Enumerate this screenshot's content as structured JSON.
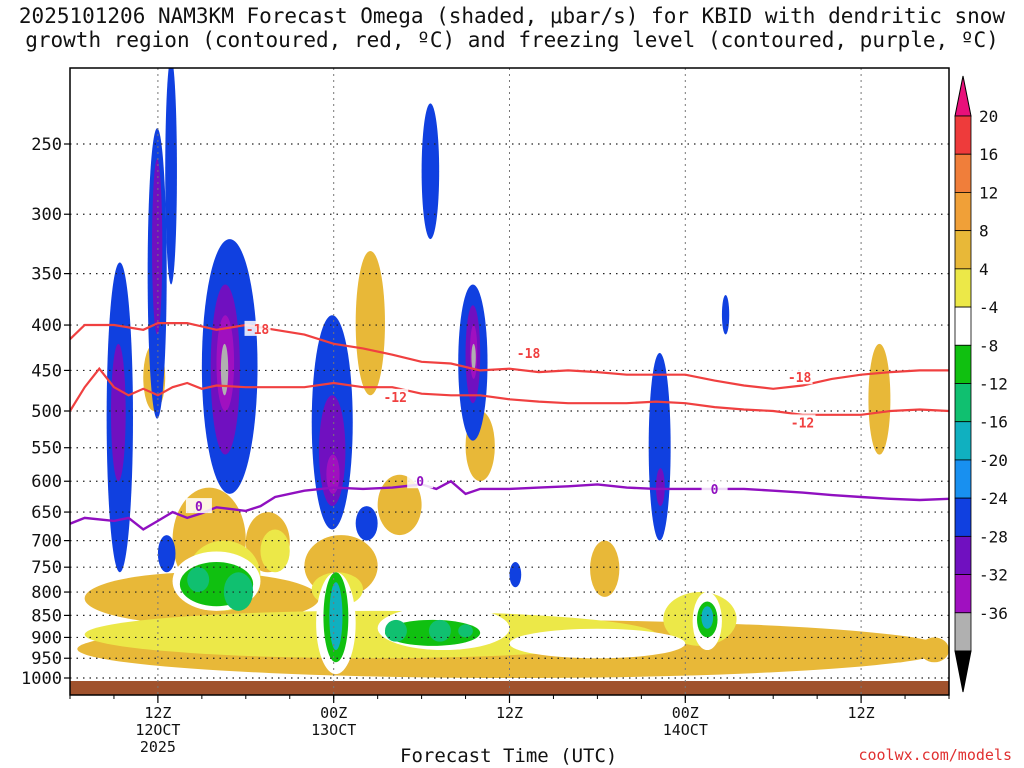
{
  "chart_data": {
    "type": "heatmap",
    "title_line1": "2025101206 NAM3KM Forecast Omega (shaded, μbar/s) for KBID with dendritic snow",
    "title_line2": "growth region (contoured, red, ºC) and freezing level (contoured, purple, ºC)",
    "xlabel": "Forecast Time (UTC)",
    "ylabel": "",
    "pressure_ticks": [
      250,
      300,
      350,
      400,
      450,
      500,
      550,
      600,
      650,
      700,
      750,
      800,
      850,
      900,
      950,
      1000
    ],
    "ylim": [
      1000,
      200
    ],
    "forecast_hours_range": [
      0,
      60
    ],
    "x_ticks": [
      {
        "hour": 6,
        "line1": "12Z",
        "line2": "12OCT",
        "line3": "2025"
      },
      {
        "hour": 18,
        "line1": "00Z",
        "line2": "13OCT",
        "line3": ""
      },
      {
        "hour": 30,
        "line1": "12Z",
        "line2": "",
        "line3": ""
      },
      {
        "hour": 42,
        "line1": "00Z",
        "line2": "14OCT",
        "line3": ""
      },
      {
        "hour": 54,
        "line1": "12Z",
        "line2": "",
        "line3": ""
      }
    ],
    "colorbar": {
      "labels": [
        "20",
        "16",
        "12",
        "8",
        "4",
        "-4",
        "-8",
        "-12",
        "-16",
        "-20",
        "-24",
        "-28",
        "-32",
        "-36"
      ],
      "colors": [
        "#e8107a",
        "#ee3b3b",
        "#f07e3a",
        "#f0a038",
        "#e8b838",
        "#ece848",
        "#ffffff",
        "#10c010",
        "#10c070",
        "#10b0c0",
        "#1890f0",
        "#1040e0",
        "#7010c0",
        "#a010c0",
        "#b0b0b0",
        "#000000"
      ]
    },
    "contours": {
      "dgz_minus18_label": "-18",
      "dgz_minus12_label": "-12",
      "freezing_label": "0",
      "minus18_series": [
        [
          0,
          415
        ],
        [
          1,
          400
        ],
        [
          3,
          400
        ],
        [
          5,
          405
        ],
        [
          6,
          398
        ],
        [
          8,
          398
        ],
        [
          10,
          405
        ],
        [
          12,
          400
        ],
        [
          14,
          405
        ],
        [
          16,
          410
        ],
        [
          18,
          420
        ],
        [
          20,
          425
        ],
        [
          22,
          432
        ],
        [
          24,
          440
        ],
        [
          26,
          442
        ],
        [
          28,
          450
        ],
        [
          30,
          448
        ],
        [
          32,
          452
        ],
        [
          34,
          450
        ],
        [
          36,
          452
        ],
        [
          38,
          455
        ],
        [
          40,
          455
        ],
        [
          42,
          455
        ],
        [
          44,
          462
        ],
        [
          46,
          468
        ],
        [
          48,
          472
        ],
        [
          50,
          468
        ],
        [
          52,
          460
        ],
        [
          54,
          455
        ],
        [
          56,
          452
        ],
        [
          58,
          450
        ],
        [
          60,
          450
        ]
      ],
      "minus12_series": [
        [
          0,
          500
        ],
        [
          1,
          470
        ],
        [
          2,
          448
        ],
        [
          3,
          470
        ],
        [
          4,
          480
        ],
        [
          5,
          472
        ],
        [
          6,
          480
        ],
        [
          7,
          470
        ],
        [
          8,
          465
        ],
        [
          9,
          472
        ],
        [
          10,
          468
        ],
        [
          12,
          470
        ],
        [
          14,
          470
        ],
        [
          16,
          470
        ],
        [
          18,
          465
        ],
        [
          20,
          470
        ],
        [
          22,
          470
        ],
        [
          24,
          478
        ],
        [
          26,
          480
        ],
        [
          28,
          480
        ],
        [
          30,
          485
        ],
        [
          32,
          488
        ],
        [
          34,
          490
        ],
        [
          36,
          490
        ],
        [
          38,
          490
        ],
        [
          40,
          488
        ],
        [
          42,
          490
        ],
        [
          44,
          495
        ],
        [
          46,
          498
        ],
        [
          48,
          500
        ],
        [
          50,
          505
        ],
        [
          52,
          505
        ],
        [
          54,
          505
        ],
        [
          56,
          500
        ],
        [
          58,
          498
        ],
        [
          60,
          500
        ]
      ],
      "freezing_series": [
        [
          0,
          670
        ],
        [
          1,
          660
        ],
        [
          3,
          665
        ],
        [
          4,
          660
        ],
        [
          5,
          680
        ],
        [
          6,
          665
        ],
        [
          7,
          650
        ],
        [
          8,
          660
        ],
        [
          9,
          652
        ],
        [
          10,
          642
        ],
        [
          11,
          645
        ],
        [
          12,
          648
        ],
        [
          13,
          640
        ],
        [
          14,
          625
        ],
        [
          16,
          615
        ],
        [
          18,
          610
        ],
        [
          20,
          612
        ],
        [
          22,
          610
        ],
        [
          24,
          605
        ],
        [
          25,
          612
        ],
        [
          26,
          600
        ],
        [
          27,
          620
        ],
        [
          28,
          612
        ],
        [
          30,
          612
        ],
        [
          32,
          610
        ],
        [
          34,
          608
        ],
        [
          36,
          605
        ],
        [
          38,
          610
        ],
        [
          40,
          612
        ],
        [
          42,
          612
        ],
        [
          44,
          612
        ],
        [
          46,
          612
        ],
        [
          48,
          615
        ],
        [
          50,
          618
        ],
        [
          52,
          622
        ],
        [
          54,
          625
        ],
        [
          56,
          628
        ],
        [
          58,
          630
        ],
        [
          60,
          628
        ]
      ]
    },
    "omega_regions": [
      {
        "c": 4,
        "x0": 0.5,
        "x1": 60,
        "p0": 1000,
        "p1": 860
      },
      {
        "c": 4,
        "x0": 1,
        "x1": 17,
        "p0": 870,
        "p1": 760
      },
      {
        "c": 4,
        "x0": 7,
        "x1": 12,
        "p0": 800,
        "p1": 610
      },
      {
        "c": 4,
        "x0": 12,
        "x1": 15,
        "p0": 760,
        "p1": 650
      },
      {
        "c": 4,
        "x0": 16,
        "x1": 21,
        "p0": 810,
        "p1": 690
      },
      {
        "c": 4,
        "x0": 19.5,
        "x1": 21.5,
        "p0": 480,
        "p1": 330
      },
      {
        "c": 4,
        "x0": 21,
        "x1": 24,
        "p0": 690,
        "p1": 590
      },
      {
        "c": 4,
        "x0": 27,
        "x1": 29,
        "p0": 600,
        "p1": 500
      },
      {
        "c": 4,
        "x0": 35.5,
        "x1": 37.5,
        "p0": 810,
        "p1": 700
      },
      {
        "c": 4,
        "x0": 5,
        "x1": 6.5,
        "p0": 500,
        "p1": 420
      },
      {
        "c": 4,
        "x0": 58,
        "x1": 60,
        "p0": 960,
        "p1": 900
      },
      {
        "c": 4,
        "x0": 54.5,
        "x1": 56,
        "p0": 560,
        "p1": 420
      },
      {
        "c": 5,
        "x0": 1,
        "x1": 40,
        "p0": 950,
        "p1": 840
      },
      {
        "c": 5,
        "x0": 8,
        "x1": 13,
        "p0": 840,
        "p1": 700
      },
      {
        "c": 5,
        "x0": 13,
        "x1": 15,
        "p0": 760,
        "p1": 680
      },
      {
        "c": 5,
        "x0": 16.5,
        "x1": 20,
        "p0": 830,
        "p1": 760
      },
      {
        "c": 5,
        "x0": 40.5,
        "x1": 45.5,
        "p0": 920,
        "p1": 800
      },
      {
        "c": 6,
        "x0": 7,
        "x1": 13,
        "p0": 840,
        "p1": 720
      },
      {
        "c": 6,
        "x0": 16.8,
        "x1": 19.5,
        "p0": 990,
        "p1": 760
      },
      {
        "c": 6,
        "x0": 21,
        "x1": 30,
        "p0": 930,
        "p1": 830
      },
      {
        "c": 6,
        "x0": 30,
        "x1": 42,
        "p0": 950,
        "p1": 880
      },
      {
        "c": 6,
        "x0": 42.5,
        "x1": 44.5,
        "p0": 930,
        "p1": 800
      },
      {
        "c": 7,
        "x0": 7.5,
        "x1": 12.5,
        "p0": 830,
        "p1": 740
      },
      {
        "c": 7,
        "x0": 17.3,
        "x1": 19,
        "p0": 960,
        "p1": 760
      },
      {
        "c": 7,
        "x0": 21.5,
        "x1": 28,
        "p0": 920,
        "p1": 860
      },
      {
        "c": 7,
        "x0": 42.8,
        "x1": 44.2,
        "p0": 900,
        "p1": 820
      },
      {
        "c": 8,
        "x0": 10.5,
        "x1": 12.5,
        "p0": 840,
        "p1": 760
      },
      {
        "c": 8,
        "x0": 8,
        "x1": 9.5,
        "p0": 800,
        "p1": 750
      },
      {
        "c": 8,
        "x0": 21.5,
        "x1": 23,
        "p0": 910,
        "p1": 860
      },
      {
        "c": 8,
        "x0": 24.5,
        "x1": 26,
        "p0": 910,
        "p1": 860
      },
      {
        "c": 8,
        "x0": 26.5,
        "x1": 27.5,
        "p0": 900,
        "p1": 870
      },
      {
        "c": 9,
        "x0": 17.7,
        "x1": 18.6,
        "p0": 930,
        "p1": 780
      },
      {
        "c": 9,
        "x0": 43.1,
        "x1": 43.9,
        "p0": 880,
        "p1": 830
      },
      {
        "c": 11,
        "x0": 2.5,
        "x1": 4.3,
        "p0": 760,
        "p1": 340
      },
      {
        "c": 11,
        "x0": 5.3,
        "x1": 6.6,
        "p0": 510,
        "p1": 240
      },
      {
        "c": 11,
        "x0": 6,
        "x1": 7.2,
        "p0": 760,
        "p1": 690
      },
      {
        "c": 11,
        "x0": 6.5,
        "x1": 7.3,
        "p0": 360,
        "p1": 200
      },
      {
        "c": 11,
        "x0": 9,
        "x1": 12.8,
        "p0": 620,
        "p1": 320
      },
      {
        "c": 11,
        "x0": 16.5,
        "x1": 19.3,
        "p0": 680,
        "p1": 390
      },
      {
        "c": 11,
        "x0": 19.5,
        "x1": 21,
        "p0": 700,
        "p1": 640
      },
      {
        "c": 11,
        "x0": 24,
        "x1": 25.2,
        "p0": 320,
        "p1": 225
      },
      {
        "c": 11,
        "x0": 26.5,
        "x1": 28.5,
        "p0": 540,
        "p1": 360
      },
      {
        "c": 11,
        "x0": 39.5,
        "x1": 41,
        "p0": 700,
        "p1": 430
      },
      {
        "c": 11,
        "x0": 44.5,
        "x1": 45,
        "p0": 410,
        "p1": 370
      },
      {
        "c": 11,
        "x0": 30,
        "x1": 30.8,
        "p0": 790,
        "p1": 740
      },
      {
        "c": 12,
        "x0": 2.8,
        "x1": 3.8,
        "p0": 600,
        "p1": 420
      },
      {
        "c": 12,
        "x0": 9.6,
        "x1": 11.6,
        "p0": 560,
        "p1": 360
      },
      {
        "c": 12,
        "x0": 17,
        "x1": 18.8,
        "p0": 640,
        "p1": 480
      },
      {
        "c": 12,
        "x0": 27,
        "x1": 28,
        "p0": 490,
        "p1": 380
      },
      {
        "c": 12,
        "x0": 5.6,
        "x1": 6.3,
        "p0": 410,
        "p1": 260
      },
      {
        "c": 12,
        "x0": 40,
        "x1": 40.6,
        "p0": 640,
        "p1": 580
      },
      {
        "c": 13,
        "x0": 10,
        "x1": 11.2,
        "p0": 500,
        "p1": 390
      },
      {
        "c": 13,
        "x0": 17.5,
        "x1": 18.4,
        "p0": 620,
        "p1": 560
      },
      {
        "c": 13,
        "x0": 27.3,
        "x1": 27.8,
        "p0": 460,
        "p1": 400
      },
      {
        "c": 14,
        "x0": 10.3,
        "x1": 10.8,
        "p0": 480,
        "p1": 420
      },
      {
        "c": 14,
        "x0": 27.4,
        "x1": 27.7,
        "p0": 450,
        "p1": 420
      }
    ]
  },
  "footer": "coolwx.com/models"
}
